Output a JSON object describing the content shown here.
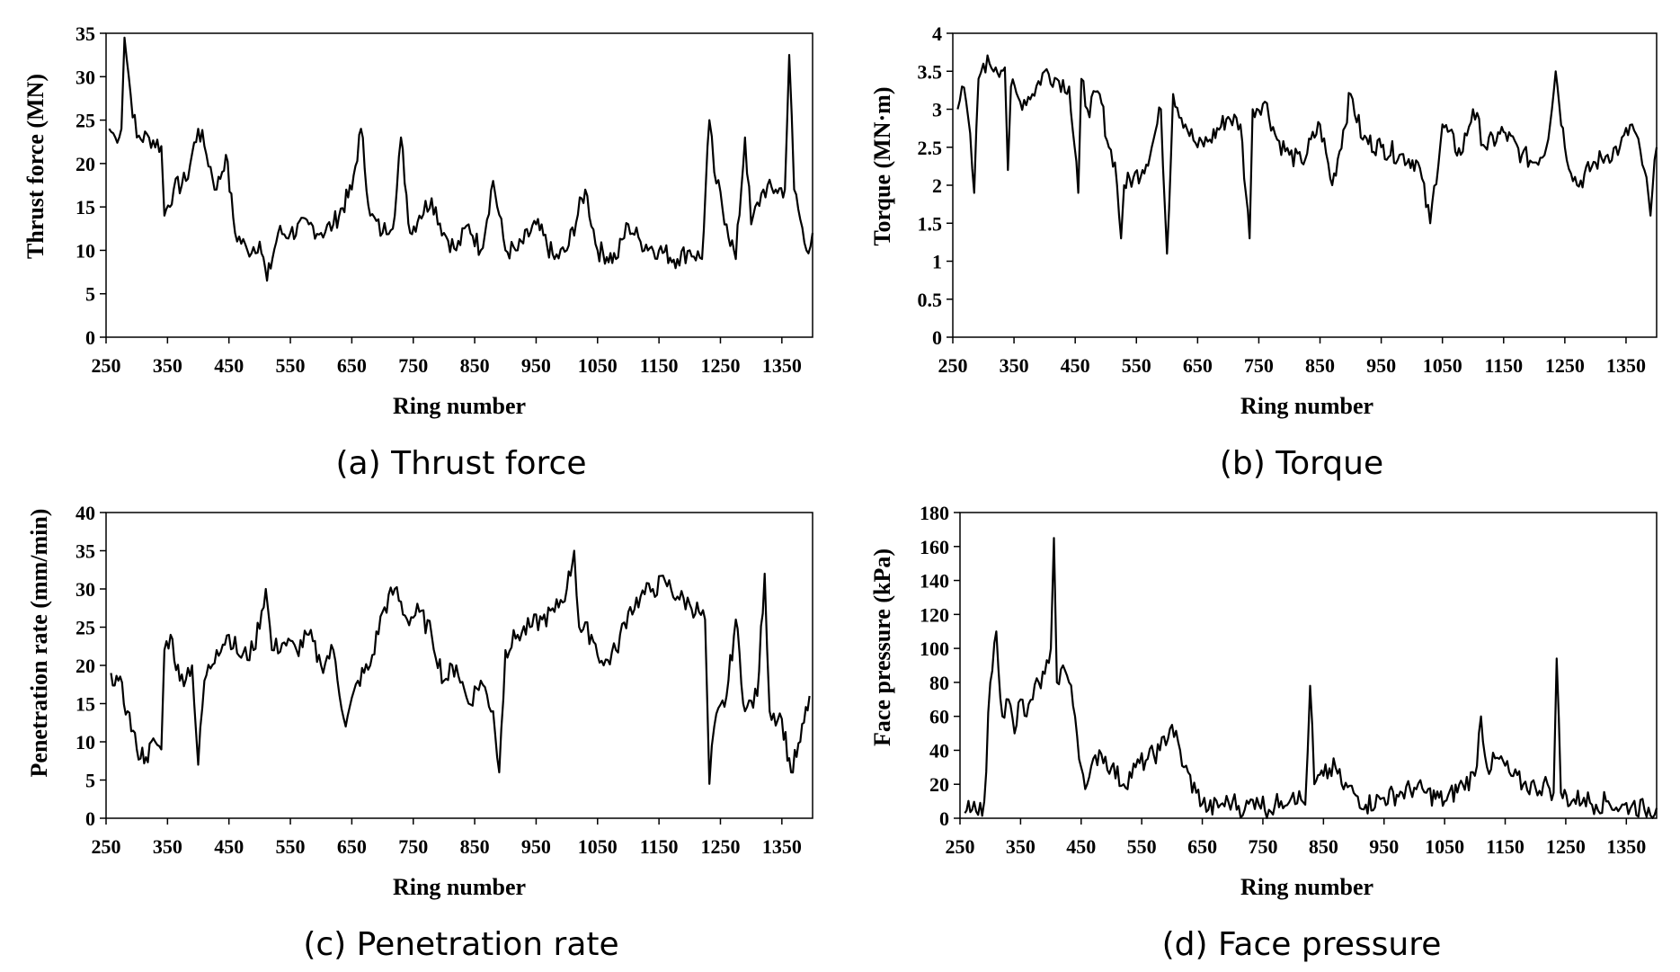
{
  "figure": {
    "captions": [
      "(a) Thrust force",
      "(b) Torque",
      "(c) Penetration rate",
      "(d) Face pressure"
    ]
  },
  "chart_data": [
    {
      "type": "line",
      "xlabel": "Ring number",
      "ylabel": "Thrust force (MN)",
      "xlim": [
        250,
        1400
      ],
      "ylim": [
        0,
        35
      ],
      "xticks": [
        250,
        350,
        450,
        550,
        650,
        750,
        850,
        950,
        1050,
        1150,
        1250,
        1350
      ],
      "yticks": [
        0,
        5,
        10,
        15,
        20,
        25,
        30,
        35
      ],
      "grid": false,
      "series": [
        {
          "x": [
            255,
            265,
            275,
            280,
            290,
            300,
            320,
            340,
            345,
            360,
            380,
            400,
            410,
            430,
            445,
            460,
            480,
            500,
            512,
            530,
            550,
            580,
            600,
            620,
            650,
            665,
            680,
            700,
            720,
            730,
            745,
            760,
            780,
            800,
            820,
            840,
            860,
            880,
            900,
            920,
            950,
            980,
            1000,
            1030,
            1050,
            1080,
            1100,
            1120,
            1150,
            1180,
            1200,
            1220,
            1232,
            1240,
            1260,
            1275,
            1290,
            1300,
            1320,
            1340,
            1355,
            1362,
            1370,
            1390,
            1400
          ],
          "y": [
            24,
            23,
            24,
            34.5,
            28,
            23,
            23,
            22,
            14,
            17,
            18,
            24,
            22,
            17,
            21,
            12,
            10,
            11,
            6.5,
            12,
            12,
            13,
            12,
            13,
            17,
            24,
            14,
            12,
            14,
            23,
            12,
            14,
            16,
            12,
            10,
            13,
            10,
            18,
            10,
            10,
            13,
            9,
            10,
            17,
            10,
            9,
            13,
            11,
            10,
            9,
            10,
            9,
            25,
            19,
            13,
            9,
            23,
            13,
            17,
            17,
            17,
            32.5,
            17,
            10,
            12
          ]
        }
      ]
    },
    {
      "type": "line",
      "xlabel": "Ring number",
      "ylabel": "Torque (MN·m)",
      "xlim": [
        250,
        1400
      ],
      "ylim": [
        0,
        4
      ],
      "xticks": [
        250,
        350,
        450,
        550,
        650,
        750,
        850,
        950,
        1050,
        1150,
        1250,
        1350
      ],
      "yticks": [
        "0",
        "0.5",
        "1",
        "1.5",
        "2",
        "2.5",
        "3",
        "3.5",
        "4"
      ],
      "grid": false,
      "series": [
        {
          "x": [
            258,
            265,
            275,
            285,
            292,
            300,
            310,
            320,
            335,
            340,
            345,
            360,
            380,
            400,
            420,
            440,
            455,
            460,
            470,
            490,
            505,
            515,
            525,
            530,
            545,
            560,
            575,
            590,
            600,
            610,
            630,
            650,
            670,
            700,
            720,
            735,
            740,
            760,
            780,
            800,
            820,
            850,
            870,
            900,
            920,
            950,
            980,
            1010,
            1030,
            1050,
            1080,
            1100,
            1120,
            1150,
            1180,
            1200,
            1220,
            1235,
            1250,
            1270,
            1300,
            1320,
            1340,
            1360,
            1380,
            1390,
            1400
          ],
          "y": [
            3.0,
            3.3,
            2.9,
            1.9,
            3.4,
            3.6,
            3.6,
            3.55,
            3.55,
            2.2,
            3.3,
            3.1,
            3.2,
            3.5,
            3.4,
            3.3,
            1.9,
            3.4,
            3.0,
            3.2,
            2.5,
            2.3,
            1.3,
            2.0,
            2.1,
            2.2,
            2.5,
            3.0,
            1.1,
            3.2,
            2.8,
            2.5,
            2.6,
            2.9,
            2.8,
            1.3,
            3.0,
            3.1,
            2.6,
            2.4,
            2.3,
            2.8,
            2.0,
            3.2,
            2.6,
            2.5,
            2.4,
            2.3,
            1.5,
            2.8,
            2.4,
            3.0,
            2.5,
            2.7,
            2.4,
            2.3,
            2.5,
            3.5,
            2.5,
            2.0,
            2.3,
            2.4,
            2.5,
            2.8,
            2.2,
            1.6,
            2.5
          ]
        }
      ]
    },
    {
      "type": "line",
      "xlabel": "Ring number",
      "ylabel": "Penetration rate (mm/min)",
      "xlim": [
        250,
        1400
      ],
      "ylim": [
        0,
        40
      ],
      "xticks": [
        250,
        350,
        450,
        550,
        650,
        750,
        850,
        950,
        1050,
        1150,
        1250,
        1350
      ],
      "yticks": [
        0,
        5,
        10,
        15,
        20,
        25,
        30,
        35,
        40
      ],
      "grid": false,
      "series": [
        {
          "x": [
            258,
            270,
            285,
            300,
            315,
            330,
            340,
            345,
            355,
            370,
            390,
            400,
            410,
            430,
            450,
            470,
            490,
            510,
            520,
            540,
            560,
            580,
            600,
            620,
            640,
            660,
            680,
            700,
            720,
            740,
            760,
            780,
            800,
            820,
            840,
            860,
            880,
            890,
            900,
            920,
            940,
            960,
            980,
            1000,
            1012,
            1020,
            1040,
            1060,
            1080,
            1100,
            1120,
            1140,
            1160,
            1180,
            1200,
            1215,
            1225,
            1232,
            1240,
            1260,
            1275,
            1290,
            1310,
            1322,
            1330,
            1350,
            1365,
            1380,
            1395
          ],
          "y": [
            19,
            18,
            14,
            9,
            8,
            10,
            9,
            22,
            24,
            18,
            20,
            7,
            18,
            22,
            24,
            21,
            22,
            30,
            22,
            23,
            22,
            24,
            20,
            22,
            12,
            18,
            20,
            27,
            30,
            26,
            27,
            24,
            18,
            20,
            15,
            18,
            14,
            6,
            22,
            24,
            25,
            26,
            27,
            30,
            35,
            25,
            24,
            20,
            22,
            27,
            29,
            30,
            31,
            29,
            28,
            27,
            26,
            4.5,
            12,
            16,
            26,
            14,
            16,
            32,
            14,
            13,
            6,
            10,
            16
          ]
        }
      ]
    },
    {
      "type": "line",
      "xlabel": "Ring number",
      "ylabel": "Face pressure (kPa)",
      "xlim": [
        250,
        1400
      ],
      "ylim": [
        0,
        180
      ],
      "xticks": [
        250,
        350,
        450,
        550,
        650,
        750,
        850,
        950,
        1050,
        1150,
        1250,
        1350
      ],
      "yticks": [
        0,
        20,
        40,
        60,
        80,
        100,
        120,
        140,
        160,
        180
      ],
      "grid": false,
      "series": [
        {
          "x": [
            258,
            270,
            280,
            290,
            300,
            310,
            320,
            330,
            340,
            350,
            360,
            370,
            380,
            390,
            400,
            405,
            410,
            420,
            430,
            440,
            450,
            460,
            480,
            500,
            520,
            540,
            560,
            580,
            600,
            620,
            640,
            660,
            680,
            700,
            720,
            740,
            760,
            780,
            800,
            820,
            828,
            835,
            850,
            870,
            880,
            900,
            920,
            950,
            980,
            1000,
            1020,
            1050,
            1080,
            1100,
            1110,
            1120,
            1140,
            1160,
            1180,
            1200,
            1220,
            1230,
            1235,
            1242,
            1260,
            1280,
            1300,
            1320,
            1340,
            1360,
            1380,
            1400
          ],
          "y": [
            3,
            5,
            2,
            10,
            80,
            110,
            60,
            70,
            50,
            70,
            60,
            70,
            80,
            85,
            100,
            165,
            80,
            90,
            80,
            60,
            30,
            20,
            40,
            30,
            20,
            30,
            35,
            40,
            55,
            30,
            15,
            5,
            8,
            10,
            5,
            12,
            5,
            10,
            15,
            8,
            78,
            20,
            25,
            30,
            20,
            15,
            8,
            12,
            15,
            18,
            15,
            10,
            20,
            25,
            60,
            30,
            35,
            25,
            20,
            18,
            20,
            15,
            94,
            15,
            10,
            12,
            8,
            10,
            6,
            8,
            5,
            6
          ]
        }
      ]
    }
  ]
}
